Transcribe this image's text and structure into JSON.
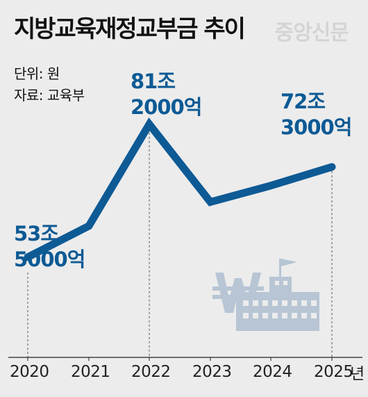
{
  "title": "지방교육재정교부금 추이",
  "watermark": "중앙신문",
  "meta": {
    "unit_key": "단위:",
    "unit_val": "원",
    "source_key": "자료:",
    "source_val": "교육부"
  },
  "x_unit": "년",
  "labels": {
    "y2020": [
      "53조",
      "5000억"
    ],
    "y2022": [
      "81조",
      "2000억"
    ],
    "y2025": [
      "72조",
      "3000억"
    ]
  },
  "colors": {
    "line": "#0d5a95",
    "icon": "#b7c5d4",
    "bg": "#ececec"
  },
  "icon_name": "won-school-building-icon",
  "chart_data": {
    "type": "line",
    "categories": [
      "2020",
      "2021",
      "2022",
      "2023",
      "2024",
      "2025"
    ],
    "series": [
      {
        "values": [
          53.5,
          60.0,
          81.2,
          65.0,
          68.4,
          72.3
        ]
      }
    ],
    "value_unit": "조 원",
    "title": "지방교육재정교부금 추이",
    "xlabel": "",
    "ylabel": "",
    "data_labels": [
      "53조 5000억",
      "81조 2000억",
      "72조 3000억"
    ],
    "ylim": [
      40,
      90
    ],
    "grid": false
  }
}
